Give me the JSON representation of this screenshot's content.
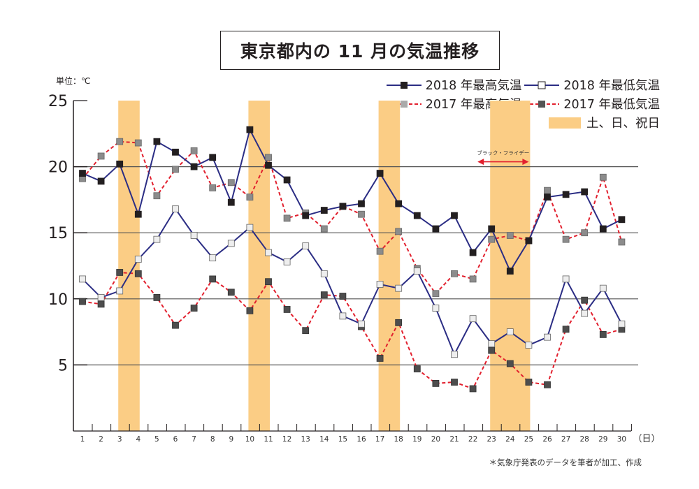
{
  "title": "東京都内の 11 月の気温推移",
  "unit_label": "単位：℃",
  "source_note": "＊気象庁発表のデータを筆者が加工、作成",
  "legend": [
    {
      "key": "max2018",
      "label": "2018 年最高気温"
    },
    {
      "key": "min2018",
      "label": "2018 年最低気温"
    },
    {
      "key": "max2017",
      "label": "2017 年最高気温"
    },
    {
      "key": "min2017",
      "label": "2017 年最低気温"
    },
    {
      "key": "weekend",
      "label": "土、日、祝日"
    }
  ],
  "colors": {
    "line2018": "#2b2d84",
    "line2017": "#e2202e",
    "marker_max2018": "#231f20",
    "marker_min2018": "#eeeeee",
    "marker_max2017": "#8c8c8c",
    "marker_min2017": "#4d4d4d",
    "weekend": "#fbcd85",
    "annotation": "#e2202e"
  },
  "chart_data": {
    "type": "line",
    "title": "東京都内の 11 月の気温推移",
    "xlabel": "（日）",
    "ylabel": "単位：℃",
    "ylim": [
      0,
      25
    ],
    "yticks": [
      5,
      10,
      15,
      20,
      25
    ],
    "x": [
      1,
      2,
      3,
      4,
      5,
      6,
      7,
      8,
      9,
      10,
      11,
      12,
      13,
      14,
      15,
      16,
      17,
      18,
      19,
      20,
      21,
      22,
      23,
      24,
      25,
      26,
      27,
      28,
      29,
      30
    ],
    "grid": "horizontal",
    "legend_position": "top-right",
    "series": [
      {
        "key": "max2018",
        "name": "2018 年最高気温",
        "style": "solid",
        "marker": "filled-square",
        "values": [
          19.5,
          18.9,
          20.2,
          16.4,
          21.9,
          21.1,
          20.0,
          20.7,
          17.3,
          22.8,
          20.1,
          19.0,
          16.3,
          16.7,
          17.0,
          17.2,
          19.5,
          17.2,
          16.3,
          15.3,
          16.3,
          13.5,
          15.3,
          12.1,
          14.4,
          17.7,
          17.9,
          18.1,
          15.3,
          16.0
        ]
      },
      {
        "key": "min2018",
        "name": "2018 年最低気温",
        "style": "solid",
        "marker": "open-square",
        "values": [
          11.5,
          10.1,
          10.6,
          13.0,
          14.5,
          16.8,
          14.8,
          13.1,
          14.2,
          15.4,
          13.5,
          12.8,
          14.0,
          11.9,
          8.7,
          8.1,
          11.1,
          10.8,
          12.1,
          9.3,
          5.8,
          8.5,
          6.6,
          7.5,
          6.5,
          7.1,
          11.5,
          8.9,
          10.8,
          8.1
        ]
      },
      {
        "key": "max2017",
        "name": "2017 年最高気温",
        "style": "dashed",
        "marker": "gray-square",
        "values": [
          19.1,
          20.8,
          21.9,
          21.8,
          17.8,
          19.8,
          21.2,
          18.4,
          18.8,
          17.7,
          20.7,
          16.1,
          16.5,
          15.3,
          17.0,
          16.4,
          13.6,
          15.1,
          12.3,
          10.4,
          11.9,
          11.5,
          14.5,
          14.8,
          14.4,
          18.2,
          14.5,
          15.0,
          19.2,
          14.3
        ]
      },
      {
        "key": "min2017",
        "name": "2017 年最低気温",
        "style": "dashed",
        "marker": "dark-square",
        "values": [
          9.8,
          9.6,
          12.0,
          11.9,
          10.1,
          8.0,
          9.3,
          11.5,
          10.5,
          9.1,
          11.3,
          9.2,
          7.6,
          10.3,
          10.2,
          7.9,
          5.5,
          8.2,
          4.7,
          3.6,
          3.7,
          3.2,
          6.1,
          5.1,
          3.7,
          3.5,
          7.7,
          9.9,
          7.3,
          7.7
        ]
      }
    ],
    "weekend_bands": [
      [
        3,
        4
      ],
      [
        10,
        11
      ],
      [
        17,
        18
      ],
      [
        23,
        25
      ]
    ],
    "annotations": [
      {
        "text": "ブラック・フライデー",
        "from_day": 23,
        "to_day": 25,
        "type": "double-arrow"
      }
    ]
  }
}
